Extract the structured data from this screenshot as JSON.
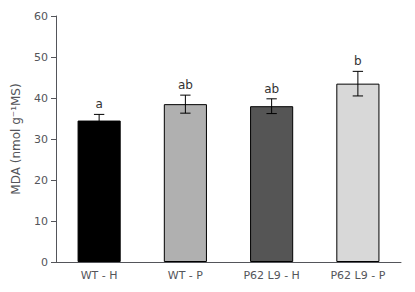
{
  "chart_data": {
    "type": "bar",
    "categories": [
      "WT - H",
      "WT - P",
      "P62 L9 - H",
      "P62 L9 - P"
    ],
    "values": [
      34.5,
      38.5,
      38.0,
      43.5
    ],
    "errors": [
      1.5,
      2.2,
      1.8,
      3.0
    ],
    "annotations": [
      "a",
      "ab",
      "ab",
      "b"
    ],
    "colors": [
      "#000000",
      "#b0b0b0",
      "#555555",
      "#d8d8d8"
    ],
    "ylabel": "MDA (nmol g⁻¹MS)",
    "ylim": [
      0,
      60
    ],
    "yticks": [
      0,
      10,
      20,
      30,
      40,
      50,
      60
    ],
    "grid": false
  }
}
